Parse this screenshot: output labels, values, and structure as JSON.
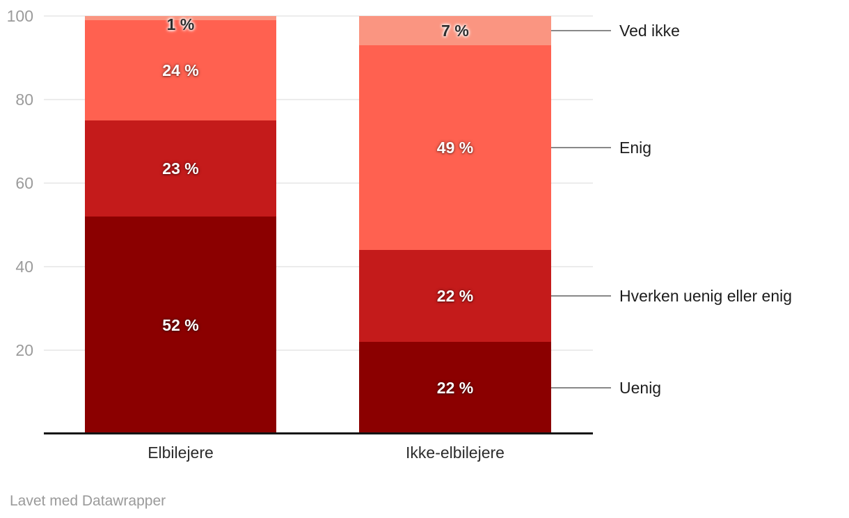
{
  "chart_data": {
    "type": "bar",
    "stacked": true,
    "orientation": "vertical",
    "categories": [
      "Elbilejere",
      "Ikke-elbilejere"
    ],
    "series": [
      {
        "name": "Uenig",
        "values": [
          52,
          22
        ],
        "color": "#8B0000",
        "label_style": "light"
      },
      {
        "name": "Hverken uenig eller enig",
        "values": [
          23,
          22
        ],
        "color": "#C41B1B",
        "label_style": "light"
      },
      {
        "name": "Enig",
        "values": [
          24,
          49
        ],
        "color": "#FF6150",
        "label_style": "light"
      },
      {
        "name": "Ved ikke",
        "values": [
          1,
          7
        ],
        "color": "#FA9581",
        "label_style": "dark"
      }
    ],
    "value_labels": {
      "Elbilejere": {
        "Uenig": "52 %",
        "Hverken uenig eller enig": "23 %",
        "Enig": "24 %",
        "Ved ikke": "1 %"
      },
      "Ikke-elbilejere": {
        "Uenig": "22 %",
        "Hverken uenig eller enig": "22 %",
        "Enig": "49 %",
        "Ved ikke": "7 %"
      }
    },
    "value_suffix": " %",
    "ylim": [
      0,
      100
    ],
    "y_ticks": [
      20,
      40,
      60,
      80,
      100
    ],
    "grid": true,
    "legend_position": "right",
    "legend_labels": [
      "Ved ikke",
      "Enig",
      "Hverken uenig eller enig",
      "Uenig"
    ]
  },
  "footer": {
    "credit": "Lavet med Datawrapper"
  },
  "colors": {
    "background": "#ffffff",
    "grid": "#ececec",
    "axis_line": "#151515",
    "tick_label": "#9b9b9b",
    "category_label": "#2b2b2b",
    "legend_label": "#1d1d1d",
    "legend_line": "#888888",
    "footer_text": "#9a9a9a"
  }
}
